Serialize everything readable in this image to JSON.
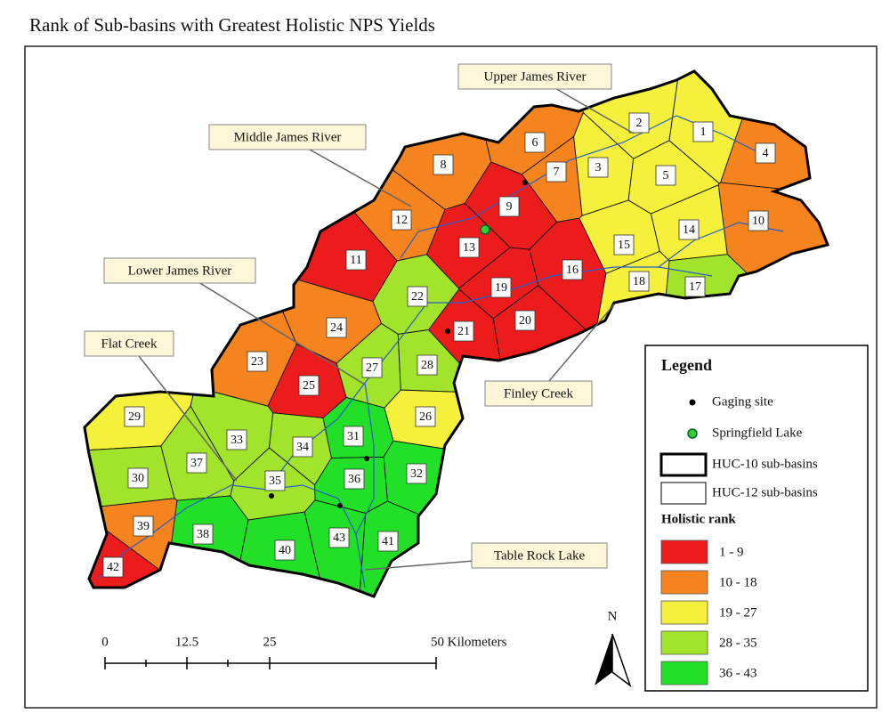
{
  "title": "Rank of Sub-basins with Greatest Holistic NPS Yields",
  "callouts": [
    "Upper James River",
    "Middle James River",
    "Lower James River",
    "Flat Creek",
    "Finley Creek",
    "Table Rock Lake"
  ],
  "basins": [
    "1",
    "2",
    "3",
    "4",
    "5",
    "6",
    "7",
    "8",
    "9",
    "10",
    "11",
    "12",
    "13",
    "14",
    "15",
    "16",
    "17",
    "18",
    "19",
    "20",
    "21",
    "22",
    "23",
    "24",
    "25",
    "26",
    "27",
    "28",
    "29",
    "30",
    "31",
    "32",
    "33",
    "34",
    "35",
    "36",
    "37",
    "38",
    "39",
    "40",
    "41",
    "42",
    "43"
  ],
  "legend": {
    "title": "Legend",
    "items": [
      "Gaging site",
      "Springfield Lake",
      "HUC-10 sub-basins",
      "HUC-12 sub-basins"
    ],
    "rank_title": "Holistic rank",
    "ranks": [
      {
        "label": "1 - 9",
        "color": "#ec1c1c"
      },
      {
        "label": "10 - 18",
        "color": "#f5841f"
      },
      {
        "label": "19 - 27",
        "color": "#f4f03c"
      },
      {
        "label": "28 - 35",
        "color": "#a2e42c"
      },
      {
        "label": "36 - 43",
        "color": "#22e028"
      }
    ]
  },
  "scale_bar": [
    "0",
    "12.5",
    "25",
    "50 Kilometers"
  ],
  "north": "N"
}
